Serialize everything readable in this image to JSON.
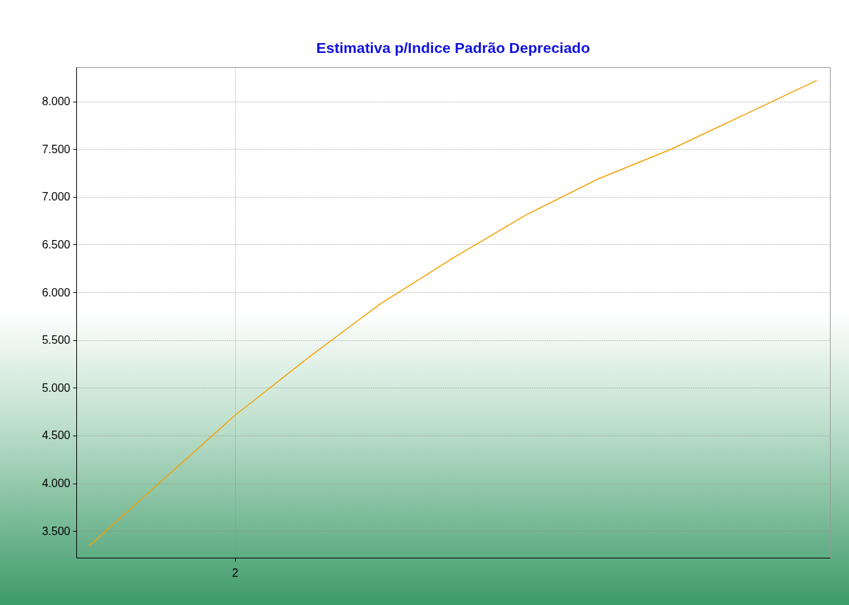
{
  "chart_data": {
    "type": "line",
    "title": "Estimativa p/Indice Padrão Depreciado",
    "categories": [
      null,
      null,
      "2",
      null,
      null,
      null,
      null,
      null,
      null,
      null,
      null
    ],
    "series": [
      {
        "color": "#f5a000",
        "values": [
          3345,
          4030,
          4710,
          5310,
          5880,
          6360,
          6810,
          7190,
          7500,
          7860,
          8220
        ]
      }
    ],
    "ylim": [
      3220,
      8360
    ],
    "yticks": [
      {
        "value": 3500,
        "label": "3.500"
      },
      {
        "value": 4000,
        "label": "4.000"
      },
      {
        "value": 4500,
        "label": "4.500"
      },
      {
        "value": 5000,
        "label": "5.000"
      },
      {
        "value": 5500,
        "label": "5.500"
      },
      {
        "value": 6000,
        "label": "6.000"
      },
      {
        "value": 6500,
        "label": "6.500"
      },
      {
        "value": 7000,
        "label": "7.000"
      },
      {
        "value": 7500,
        "label": "7.500"
      },
      {
        "value": 8000,
        "label": "8.000"
      }
    ],
    "grid": true,
    "marker": "none",
    "line_style": "solid"
  }
}
